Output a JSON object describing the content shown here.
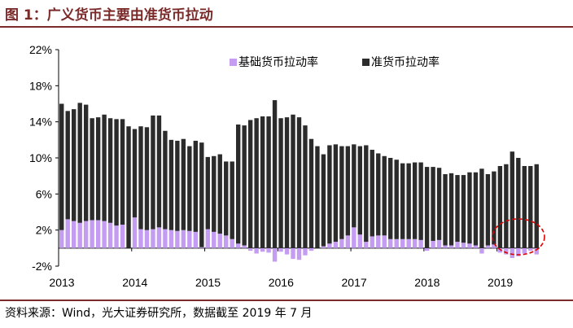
{
  "header": {
    "title": "图 1：广义货币主要由准货币拉动"
  },
  "footer": {
    "source": "资料来源：Wind，光大证券研究所，数据截至 2019 年 7 月"
  },
  "colors": {
    "base": "#c49cf1",
    "quasi": "#2b2b2b",
    "axis": "#000000",
    "title": "#7b2a2a",
    "highlight": "#e00000"
  },
  "chart_data": {
    "type": "bar",
    "stacked": true,
    "title": "",
    "xlabel": "",
    "ylabel": "",
    "ylim": [
      -2,
      22
    ],
    "y_ticks": [
      "-2%",
      "2%",
      "6%",
      "10%",
      "14%",
      "18%",
      "22%"
    ],
    "y_tick_values": [
      -2,
      2,
      6,
      10,
      14,
      18,
      22
    ],
    "x_tick_labels": [
      "2013",
      "2014",
      "2015",
      "2016",
      "2017",
      "2018",
      "2019"
    ],
    "x_tick_indices": [
      0,
      12,
      24,
      36,
      48,
      60,
      72
    ],
    "grid": false,
    "legend": {
      "placement": "top",
      "entries": [
        "基础货币拉动率",
        "准货币拉动率"
      ]
    },
    "annotation": {
      "type": "dashed-ellipse",
      "around": "2019 negative base money contributions"
    },
    "series": [
      {
        "name": "基础货币拉动率",
        "color": "#c49cf1",
        "values": [
          2.0,
          3.2,
          3.0,
          2.8,
          3.0,
          3.1,
          3.1,
          3.0,
          2.8,
          2.5,
          2.6,
          0.0,
          3.4,
          2.1,
          2.0,
          2.1,
          2.3,
          2.1,
          2.0,
          1.9,
          2.0,
          1.9,
          1.8,
          0.1,
          2.1,
          1.8,
          1.6,
          1.4,
          1.0,
          0.5,
          0.3,
          -0.3,
          -0.6,
          -0.4,
          -0.5,
          -1.5,
          -0.4,
          -0.7,
          -1.2,
          -1.3,
          -0.8,
          -0.3,
          0.0,
          0.2,
          0.5,
          0.7,
          1.0,
          1.4,
          2.3,
          1.5,
          0.7,
          1.3,
          1.4,
          1.4,
          1.0,
          1.0,
          1.0,
          1.0,
          1.0,
          0.9,
          -0.3,
          0.8,
          0.9,
          0.3,
          0.3,
          0.7,
          0.6,
          0.5,
          0.3,
          -0.6,
          0.3,
          0.4,
          -0.5,
          -0.7,
          -1.1,
          -0.9,
          -0.6,
          -0.3,
          -0.7
        ]
      },
      {
        "name": "准货币拉动率",
        "color": "#2b2b2b",
        "values": [
          14.0,
          12.0,
          12.4,
          13.3,
          12.9,
          11.3,
          11.4,
          11.8,
          11.6,
          11.8,
          11.7,
          13.5,
          9.8,
          11.4,
          11.4,
          12.6,
          12.4,
          10.9,
          10.0,
          10.0,
          10.1,
          9.4,
          10.1,
          11.6,
          8.0,
          8.4,
          8.8,
          8.2,
          8.6,
          13.2,
          13.3,
          14.2,
          14.4,
          14.6,
          14.6,
          16.4,
          14.4,
          14.5,
          14.8,
          14.5,
          13.6,
          12.1,
          11.3,
          10.2,
          10.9,
          10.8,
          10.3,
          9.9,
          9.2,
          9.8,
          10.7,
          9.6,
          9.1,
          8.8,
          9.0,
          8.8,
          8.4,
          8.4,
          8.5,
          8.6,
          9.0,
          8.2,
          8.0,
          7.9,
          8.0,
          7.4,
          7.5,
          7.9,
          8.1,
          8.8,
          7.9,
          8.1,
          9.1,
          9.3,
          10.7,
          10.0,
          9.1,
          9.1,
          9.3
        ]
      }
    ]
  }
}
